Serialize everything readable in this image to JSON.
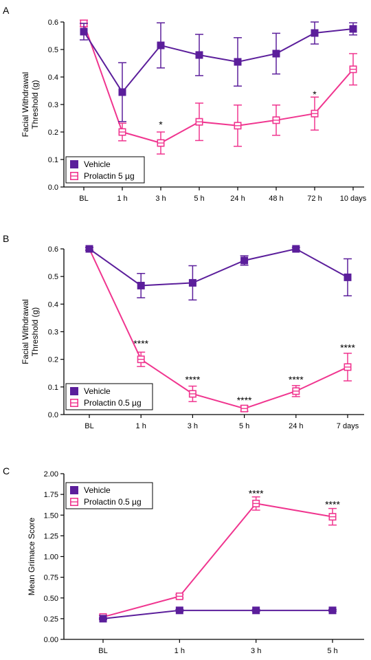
{
  "colors": {
    "vehicle": "#5b1e9b",
    "prolactin": "#f0358f",
    "axis": "#000000"
  },
  "chart_data": [
    {
      "panel": "A",
      "type": "line",
      "ylabel": "Facial Withdrawal\nThreshold (g)",
      "ylim": [
        0,
        0.6
      ],
      "yticks": [
        0.0,
        0.1,
        0.2,
        0.3,
        0.4,
        0.5,
        0.6
      ],
      "ytick_labels": [
        "0.0",
        "0.1",
        "0.2",
        "0.3",
        "0.4",
        "0.5",
        "0.6"
      ],
      "categories": [
        "BL",
        "1 h",
        "3 h",
        "5 h",
        "24 h",
        "48 h",
        "72 h",
        "10 days"
      ],
      "legend_position": "bottom-left",
      "series": [
        {
          "name": "Vehicle",
          "color_key": "vehicle",
          "marker": "filled",
          "values": [
            0.565,
            0.345,
            0.515,
            0.48,
            0.455,
            0.485,
            0.56,
            0.575
          ],
          "err": [
            0.03,
            0.107,
            0.082,
            0.075,
            0.088,
            0.074,
            0.04,
            0.022
          ]
        },
        {
          "name": "Prolactin 5 µg",
          "color_key": "prolactin",
          "marker": "open",
          "values": [
            0.595,
            0.2,
            0.16,
            0.237,
            0.223,
            0.243,
            0.267,
            0.428
          ],
          "err": [
            0.012,
            0.032,
            0.04,
            0.068,
            0.075,
            0.055,
            0.06,
            0.057
          ]
        }
      ],
      "annotations": [
        {
          "category": "3 h",
          "text": "*",
          "y": 0.23
        },
        {
          "category": "72 h",
          "text": "*",
          "y": 0.34
        }
      ]
    },
    {
      "panel": "B",
      "type": "line",
      "ylabel": "Facial Withdrawal\nThreshold (g)",
      "ylim": [
        0,
        0.6
      ],
      "yticks": [
        0.0,
        0.1,
        0.2,
        0.3,
        0.4,
        0.5,
        0.6
      ],
      "ytick_labels": [
        "0.0",
        "0.1",
        "0.2",
        "0.3",
        "0.4",
        "0.5",
        "0.6"
      ],
      "categories": [
        "BL",
        "1 h",
        "3 h",
        "5 h",
        "24 h",
        "7 days"
      ],
      "legend_position": "bottom-left",
      "series": [
        {
          "name": "Vehicle",
          "color_key": "vehicle",
          "marker": "filled",
          "values": [
            0.6,
            0.467,
            0.477,
            0.558,
            0.6,
            0.497
          ],
          "err": [
            0.005,
            0.044,
            0.062,
            0.017,
            0.005,
            0.067
          ]
        },
        {
          "name": "Prolactin 0.5 µg",
          "color_key": "prolactin",
          "marker": "open",
          "values": [
            0.6,
            0.2,
            0.075,
            0.022,
            0.085,
            0.172
          ],
          "err": [
            0.005,
            0.026,
            0.028,
            0.01,
            0.02,
            0.05
          ]
        }
      ],
      "annotations": [
        {
          "category": "1 h",
          "text": "****",
          "y": 0.26
        },
        {
          "category": "3 h",
          "text": "****",
          "y": 0.13
        },
        {
          "category": "5 h",
          "text": "****",
          "y": 0.055
        },
        {
          "category": "24 h",
          "text": "****",
          "y": 0.13
        },
        {
          "category": "7 days",
          "text": "****",
          "y": 0.245
        }
      ]
    },
    {
      "panel": "C",
      "type": "line",
      "ylabel": "Mean Grimace Score",
      "ylim": [
        0,
        2
      ],
      "yticks": [
        0.0,
        0.25,
        0.5,
        0.75,
        1.0,
        1.25,
        1.5,
        1.75,
        2.0
      ],
      "ytick_labels": [
        "0.00",
        "0.25",
        "0.50",
        "0.75",
        "1.00",
        "1.25",
        "1.50",
        "1.75",
        "2.00"
      ],
      "categories": [
        "BL",
        "1 h",
        "3 h",
        "5 h"
      ],
      "legend_position": "top-left",
      "series": [
        {
          "name": "Vehicle",
          "color_key": "vehicle",
          "marker": "filled",
          "values": [
            0.25,
            0.35,
            0.35,
            0.35
          ],
          "err": [
            0.01,
            0.01,
            0.01,
            0.01
          ]
        },
        {
          "name": "Prolactin 0.5  µg",
          "color_key": "prolactin",
          "marker": "open",
          "values": [
            0.27,
            0.52,
            1.64,
            1.48
          ],
          "err": [
            0.02,
            0.02,
            0.08,
            0.1
          ]
        }
      ],
      "annotations": [
        {
          "category": "3 h",
          "text": "****",
          "y": 1.77
        },
        {
          "category": "5 h",
          "text": "****",
          "y": 1.64
        }
      ]
    }
  ]
}
